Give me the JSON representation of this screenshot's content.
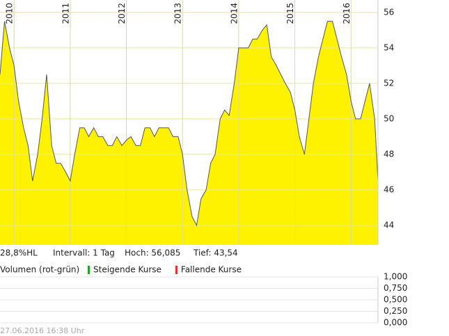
{
  "chart_data": [
    {
      "type": "area",
      "color": "#fff200",
      "line_color": "#555555",
      "x": [
        2009.75,
        2009.83,
        2009.92,
        2010.0,
        2010.08,
        2010.17,
        2010.25,
        2010.33,
        2010.42,
        2010.5,
        2010.58,
        2010.67,
        2010.75,
        2010.83,
        2010.92,
        2011.0,
        2011.08,
        2011.17,
        2011.25,
        2011.33,
        2011.42,
        2011.5,
        2011.58,
        2011.67,
        2011.75,
        2011.83,
        2011.92,
        2012.0,
        2012.08,
        2012.17,
        2012.25,
        2012.33,
        2012.42,
        2012.5,
        2012.58,
        2012.67,
        2012.75,
        2012.83,
        2012.92,
        2013.0,
        2013.08,
        2013.17,
        2013.25,
        2013.33,
        2013.42,
        2013.5,
        2013.58,
        2013.67,
        2013.75,
        2013.83,
        2013.92,
        2014.0,
        2014.08,
        2014.17,
        2014.25,
        2014.33,
        2014.42,
        2014.5,
        2014.58,
        2014.67,
        2014.75,
        2014.83,
        2014.92,
        2015.0,
        2015.08,
        2015.17,
        2015.25,
        2015.33,
        2015.42,
        2015.5,
        2015.58,
        2015.67,
        2015.75,
        2015.83,
        2015.92,
        2016.0,
        2016.08,
        2016.17,
        2016.25,
        2016.33,
        2016.42,
        2016.48
      ],
      "values": [
        52.5,
        55.5,
        54,
        53,
        51,
        49.5,
        48.5,
        46.5,
        48,
        50,
        52.5,
        48.5,
        47.5,
        47.5,
        47,
        46.5,
        48,
        49.5,
        49.5,
        49,
        49.5,
        49,
        49,
        48.5,
        48.5,
        49,
        48.5,
        48.8,
        49,
        48.5,
        48.5,
        49.5,
        49.5,
        49,
        49.5,
        49.5,
        49.5,
        49,
        49,
        48,
        46,
        44.5,
        44,
        45.5,
        46,
        47.5,
        48,
        50,
        50.5,
        50.2,
        52,
        54,
        54,
        54,
        54.5,
        54.5,
        55,
        55.3,
        53.5,
        53,
        52.5,
        52,
        51.5,
        50.5,
        49,
        48,
        50,
        52,
        53.5,
        54.5,
        55.5,
        55.5,
        54.5,
        53.5,
        52.5,
        51,
        50,
        50,
        51,
        52,
        50,
        46.5
      ],
      "xlim": [
        2009.75,
        2016.48
      ],
      "xticks": [
        2010,
        2011,
        2012,
        2013,
        2014,
        2015,
        2016
      ],
      "ylim": [
        42.9,
        56.7
      ],
      "yticks": [
        44,
        46,
        48,
        50,
        52,
        54,
        56
      ],
      "grid": true,
      "annotations": [
        "28,8%HL",
        "Intervall: 1 Tag",
        "Hoch:  56,085",
        "Tief:  43,54"
      ]
    },
    {
      "type": "bar",
      "title": "Volumen (rot-grün)",
      "series": [
        {
          "name": "Steigende Kurse",
          "color": "#1aa81a",
          "values": []
        },
        {
          "name": "Fallende Kurse",
          "color": "#e03030",
          "values": []
        }
      ],
      "ylim": [
        0,
        1
      ],
      "yticks": [
        {
          "value": 1,
          "label": "1,000"
        },
        {
          "value": 0.75,
          "label": "0,750"
        },
        {
          "value": 0.5,
          "label": "0,500"
        },
        {
          "value": 0.25,
          "label": "0,250"
        },
        {
          "value": 0,
          "label": "0,000"
        }
      ],
      "grid": true
    }
  ],
  "timestamp": "27.06.2016 16:38 Uhr"
}
